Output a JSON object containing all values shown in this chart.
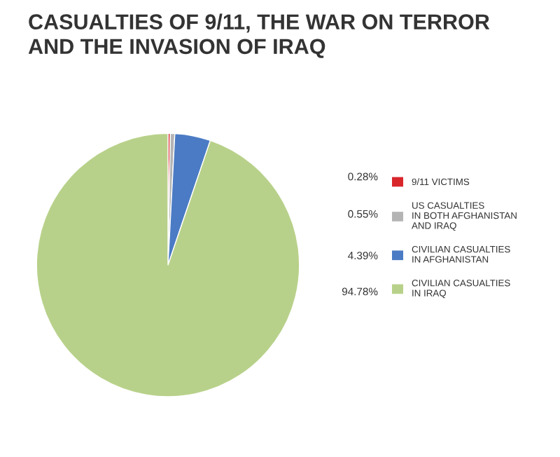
{
  "chart_data": {
    "type": "pie",
    "title": "CASUALTIES OF 9/11, THE WAR ON TERROR\nAND THE INVASION OF IRAQ",
    "categories": [
      "9/11 VICTIMS",
      "US CASUALTIES\nIN BOTH AFGHANISTAN\nAND IRAQ",
      "CIVILIAN CASUALTIES\nIN AFGHANISTAN",
      "CIVILIAN CASUALTIES\nIN IRAQ"
    ],
    "values": [
      0.28,
      0.55,
      4.39,
      94.78
    ],
    "value_labels": [
      "0.28%",
      "0.55%",
      "4.39%",
      "94.78%"
    ],
    "colors": [
      "#d8262b",
      "#b4b4b4",
      "#4b7bc4",
      "#b8d18a"
    ],
    "legend": "right"
  }
}
